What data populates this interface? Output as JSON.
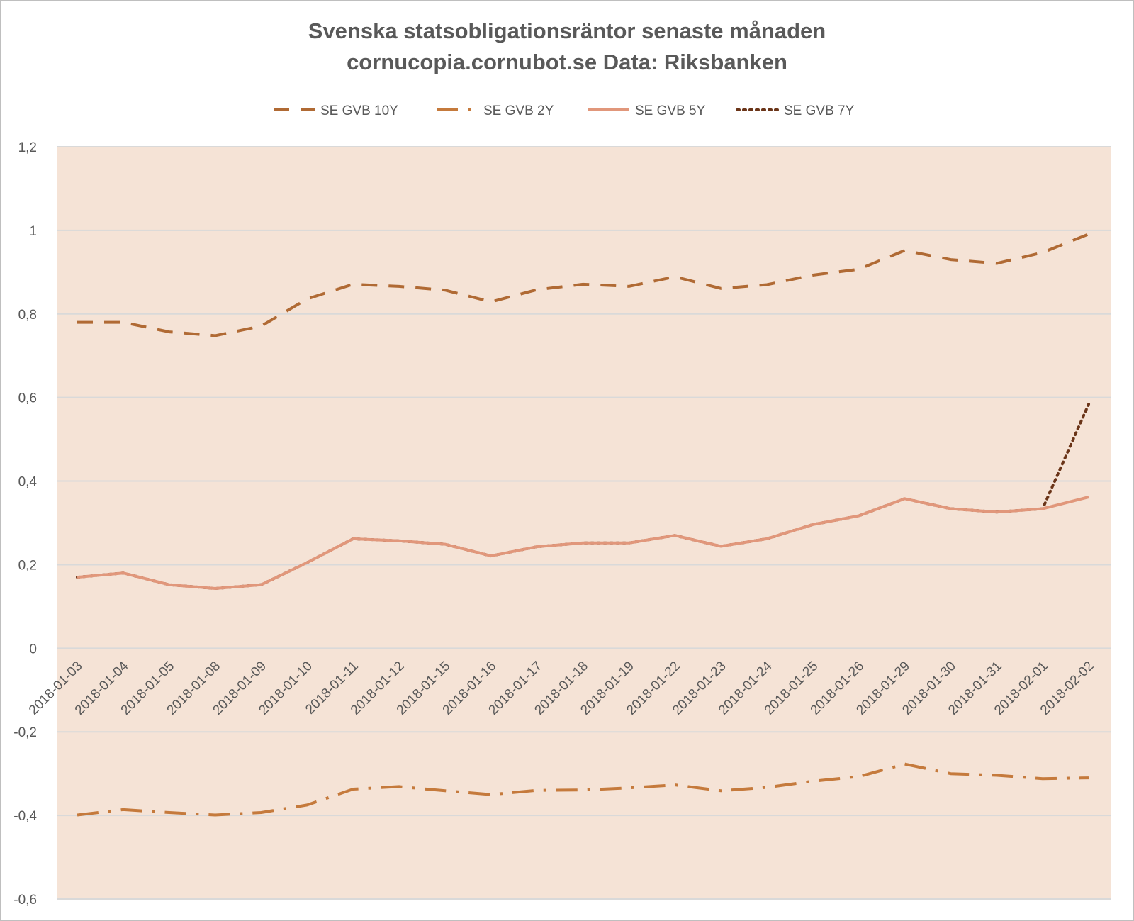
{
  "chart_data": {
    "type": "line",
    "title": "Svenska statsobligationsräntor senaste månaden",
    "subtitle": "cornucopia.cornubot.se Data: Riksbanken",
    "xlabel": "",
    "ylabel": "",
    "ylim": [
      -0.6,
      1.2
    ],
    "yticks": [
      1.2,
      1.0,
      0.8,
      0.6,
      0.4,
      0.2,
      0.0,
      -0.2,
      -0.4,
      -0.6
    ],
    "ytick_labels": [
      "1,2",
      "1",
      "0,8",
      "0,6",
      "0,4",
      "0,2",
      "0",
      "-0,2",
      "-0,4",
      "-0,6"
    ],
    "grid": true,
    "legend_position": "top",
    "plot_background": "#f5e3d6",
    "categories": [
      "2018-01-03",
      "2018-01-04",
      "2018-01-05",
      "2018-01-08",
      "2018-01-09",
      "2018-01-10",
      "2018-01-11",
      "2018-01-12",
      "2018-01-15",
      "2018-01-16",
      "2018-01-17",
      "2018-01-18",
      "2018-01-19",
      "2018-01-22",
      "2018-01-23",
      "2018-01-24",
      "2018-01-25",
      "2018-01-26",
      "2018-01-29",
      "2018-01-30",
      "2018-01-31",
      "2018-02-01",
      "2018-02-02"
    ],
    "series": [
      {
        "name": "SE GVB 10Y",
        "color": "#b06a34",
        "dash": "dash",
        "values": [
          0.78,
          0.78,
          0.757,
          0.748,
          0.771,
          0.836,
          0.871,
          0.866,
          0.857,
          0.829,
          0.858,
          0.871,
          0.866,
          0.889,
          0.861,
          0.87,
          0.893,
          0.907,
          0.952,
          0.93,
          0.921,
          0.947,
          0.991
        ]
      },
      {
        "name": "SE GVB 2Y",
        "color": "#c57a3c",
        "dash": "dashdot",
        "values": [
          -0.399,
          -0.386,
          -0.393,
          -0.399,
          -0.393,
          -0.375,
          -0.337,
          -0.331,
          -0.341,
          -0.35,
          -0.34,
          -0.339,
          -0.334,
          -0.327,
          -0.341,
          -0.333,
          -0.318,
          -0.307,
          -0.277,
          -0.3,
          -0.304,
          -0.312,
          -0.31
        ]
      },
      {
        "name": "SE GVB 5Y",
        "color": "#e1977b",
        "dash": "solid",
        "values": [
          0.17,
          0.18,
          0.152,
          0.143,
          0.152,
          0.205,
          0.262,
          0.257,
          0.249,
          0.221,
          0.243,
          0.252,
          0.252,
          0.27,
          0.244,
          0.262,
          0.296,
          0.317,
          0.358,
          0.334,
          0.326,
          0.334,
          0.362
        ]
      },
      {
        "name": "SE GVB 7Y",
        "color": "#6a3418",
        "dash": "dot",
        "values": [
          0.17,
          0.18,
          0.152,
          0.143,
          0.152,
          0.205,
          0.262,
          0.257,
          0.249,
          0.221,
          0.243,
          0.252,
          0.252,
          0.27,
          0.244,
          0.262,
          0.296,
          0.317,
          0.358,
          0.334,
          0.326,
          0.334,
          0.584
        ]
      }
    ]
  }
}
